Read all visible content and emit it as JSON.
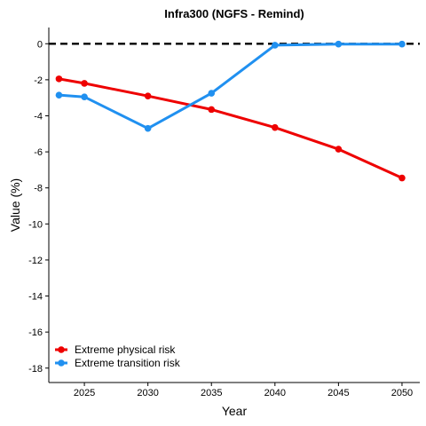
{
  "chart_data": {
    "type": "line",
    "title": "Infra300 (NGFS - Remind)",
    "xlabel": "Year",
    "ylabel": "Value (%)",
    "xlim": [
      2022.2,
      2051.4
    ],
    "ylim": [
      -18.8,
      0.9
    ],
    "x_ticks": [
      2025,
      2030,
      2035,
      2040,
      2045,
      2050
    ],
    "y_ticks": [
      0,
      -2,
      -4,
      -6,
      -8,
      -10,
      -12,
      -14,
      -16,
      -18
    ],
    "reference_line": {
      "y": 0,
      "style": "dashed",
      "color": "#000000"
    },
    "grid": false,
    "legend_position": "bottom-left",
    "series": [
      {
        "name": "Extreme physical risk",
        "color": "#ee0000",
        "x": [
          2023,
          2025,
          2030,
          2035,
          2040,
          2045,
          2050
        ],
        "y": [
          -1.95,
          -2.2,
          -2.9,
          -3.65,
          -4.65,
          -5.85,
          -7.45
        ]
      },
      {
        "name": "Extreme transition risk",
        "color": "#2090f0",
        "x": [
          2023,
          2025,
          2030,
          2035,
          2040,
          2045,
          2050
        ],
        "y": [
          -2.85,
          -2.95,
          -4.7,
          -2.75,
          -0.08,
          -0.02,
          -0.02
        ]
      }
    ]
  }
}
